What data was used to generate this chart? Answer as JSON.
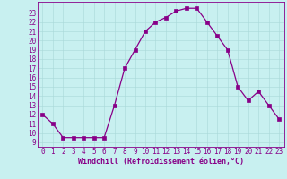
{
  "x": [
    0,
    1,
    2,
    3,
    4,
    5,
    6,
    7,
    8,
    9,
    10,
    11,
    12,
    13,
    14,
    15,
    16,
    17,
    18,
    19,
    20,
    21,
    22,
    23
  ],
  "y": [
    12,
    11,
    9.5,
    9.5,
    9.5,
    9.5,
    9.5,
    13,
    17,
    19,
    21,
    22,
    22.5,
    23.2,
    23.5,
    23.5,
    22,
    20.5,
    19,
    15,
    13.5,
    14.5,
    13,
    11.5
  ],
  "line_color": "#880088",
  "marker_color": "#880088",
  "bg_color": "#c8f0f0",
  "grid_color": "#a8d8d8",
  "xlabel": "Windchill (Refroidissement éolien,°C)",
  "xlim": [
    -0.5,
    23.5
  ],
  "ylim": [
    8.5,
    24.2
  ],
  "xticks": [
    0,
    1,
    2,
    3,
    4,
    5,
    6,
    7,
    8,
    9,
    10,
    11,
    12,
    13,
    14,
    15,
    16,
    17,
    18,
    19,
    20,
    21,
    22,
    23
  ],
  "yticks": [
    9,
    10,
    11,
    12,
    13,
    14,
    15,
    16,
    17,
    18,
    19,
    20,
    21,
    22,
    23
  ],
  "xtick_labels": [
    "0",
    "1",
    "2",
    "3",
    "4",
    "5",
    "6",
    "7",
    "8",
    "9",
    "10",
    "11",
    "12",
    "13",
    "14",
    "15",
    "16",
    "17",
    "18",
    "19",
    "20",
    "21",
    "22",
    "23"
  ],
  "ytick_labels": [
    "9",
    "10",
    "11",
    "12",
    "13",
    "14",
    "15",
    "16",
    "17",
    "18",
    "19",
    "20",
    "21",
    "22",
    "23"
  ],
  "font_color": "#880088",
  "tick_fontsize": 5.5,
  "xlabel_fontsize": 6.0
}
